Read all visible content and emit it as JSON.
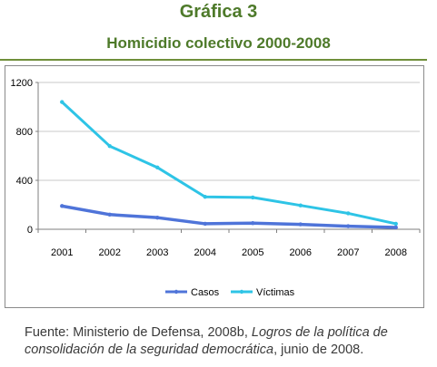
{
  "header": {
    "title": "Gráfica 3",
    "subtitle": "Homicidio colectivo 2000-2008"
  },
  "chart_data": {
    "type": "line",
    "title": "Homicidio colectivo 2000-2008",
    "categories": [
      "2001",
      "2002",
      "2003",
      "2004",
      "2005",
      "2006",
      "2007",
      "2008"
    ],
    "ylim": [
      0,
      1200
    ],
    "yticks": [
      "0",
      "400",
      "800",
      "1200"
    ],
    "grid": true,
    "legend_position": "bottom",
    "series": [
      {
        "name": "Casos",
        "color": "#4f74d9",
        "values": [
          190,
          120,
          95,
          45,
          50,
          40,
          25,
          15
        ]
      },
      {
        "name": "Víctimas",
        "color": "#2ec4e6",
        "values": [
          1040,
          680,
          505,
          265,
          260,
          195,
          130,
          45
        ]
      }
    ]
  },
  "source": {
    "prefix": "Fuente: Ministerio de Defensa, 2008b, ",
    "italic": "Logros de la política de consolidación de la seguridad democrática",
    "suffix": ", junio de 2008."
  }
}
